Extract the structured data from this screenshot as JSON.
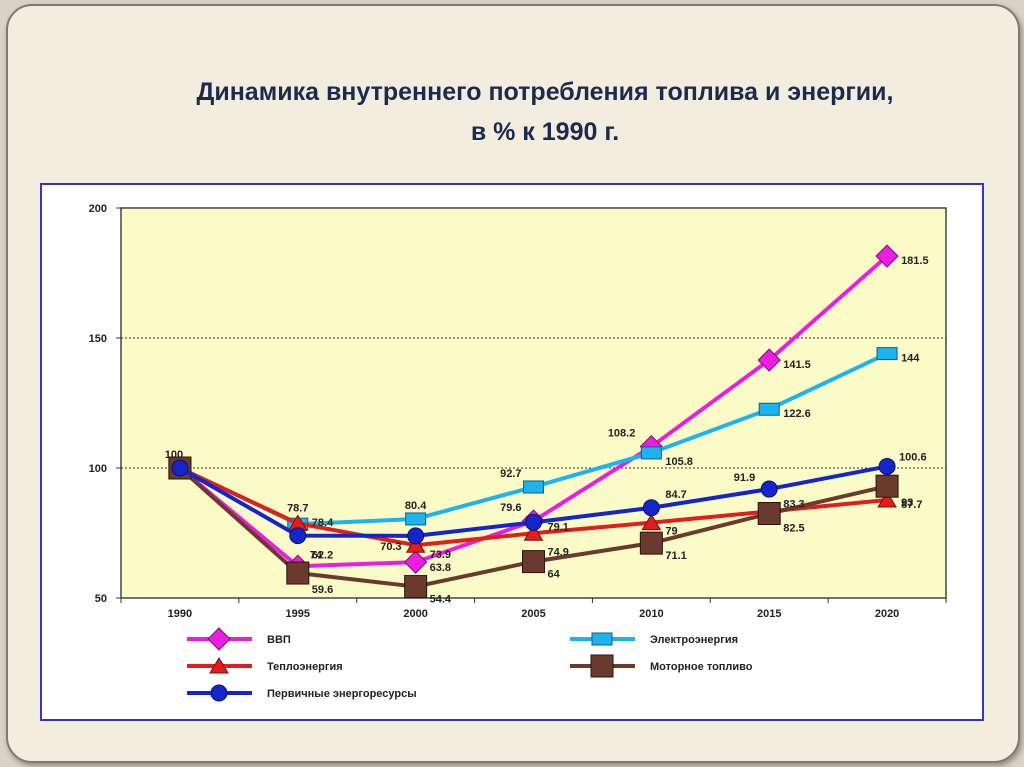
{
  "slide": {
    "title_line1": "Динамика внутреннего потребления топлива и энергии,",
    "title_line2": "в % к 1990 г."
  },
  "colors": {
    "plot_background": "#fbfbc8",
    "ВВП": "#ea1ee0",
    "Теплоэнергия": "#e01e1e",
    "Первичные энергоресурсы": "#1426c9",
    "Электроэнергия": "#1db3ec",
    "Моторное топливо": "#6b3a2e"
  },
  "chart_data": {
    "type": "line",
    "title": "Динамика внутреннего потребления топлива и энергии, в % к 1990 г.",
    "x": [
      "1990",
      "1995",
      "2000",
      "2005",
      "2010",
      "2015",
      "2020"
    ],
    "ylim": [
      50,
      200
    ],
    "yticks": [
      "50",
      "100",
      "150",
      "200"
    ],
    "gridlines_dashed": [
      100,
      150
    ],
    "legend_position": "bottom",
    "series": [
      {
        "name": "ВВП",
        "key": "vvp",
        "marker": "diamond",
        "values": [
          100,
          62.2,
          63.8,
          79.6,
          108.2,
          141.5,
          181.5
        ],
        "labels": [
          "100",
          "62.2",
          "63.8",
          "79.6",
          "108.2",
          "141.5",
          "181.5"
        ]
      },
      {
        "name": "Электроэнергия",
        "key": "elec",
        "marker": "square-small",
        "values": [
          100,
          78.4,
          80.4,
          92.7,
          105.8,
          122.6,
          144
        ],
        "labels": [
          "",
          "78.4",
          "80.4",
          "92.7",
          "105.8",
          "122.6",
          "144"
        ]
      },
      {
        "name": "Теплоэнергия",
        "key": "teplo",
        "marker": "triangle",
        "values": [
          100,
          78.7,
          70.3,
          74.9,
          79,
          83.3,
          87.7
        ],
        "labels": [
          "",
          "78.7",
          "70.3",
          "74.9",
          "79",
          "83.3",
          "87.7"
        ]
      },
      {
        "name": "Моторное топливо",
        "key": "motor",
        "marker": "square",
        "values": [
          100,
          59.6,
          54.4,
          64,
          71.1,
          82.5,
          93
        ],
        "labels": [
          "",
          "59.6",
          "54.4",
          "64",
          "71.1",
          "82.5",
          "93"
        ]
      },
      {
        "name": "Первичные энергоресурсы",
        "key": "perv",
        "marker": "circle",
        "values": [
          100,
          74,
          73.9,
          79.1,
          84.7,
          91.9,
          100.6
        ],
        "labels": [
          "",
          "74",
          "73.9",
          "79.1",
          "84.7",
          "91.9",
          "100.6"
        ]
      }
    ],
    "legend": [
      {
        "key": "vvp",
        "label": "ВВП"
      },
      {
        "key": "teplo",
        "label": "Теплоэнергия"
      },
      {
        "key": "perv",
        "label": "Первичные энергоресурсы"
      },
      {
        "key": "elec",
        "label": "Электроэнергия"
      },
      {
        "key": "motor",
        "label": "Моторное топливо"
      }
    ]
  }
}
